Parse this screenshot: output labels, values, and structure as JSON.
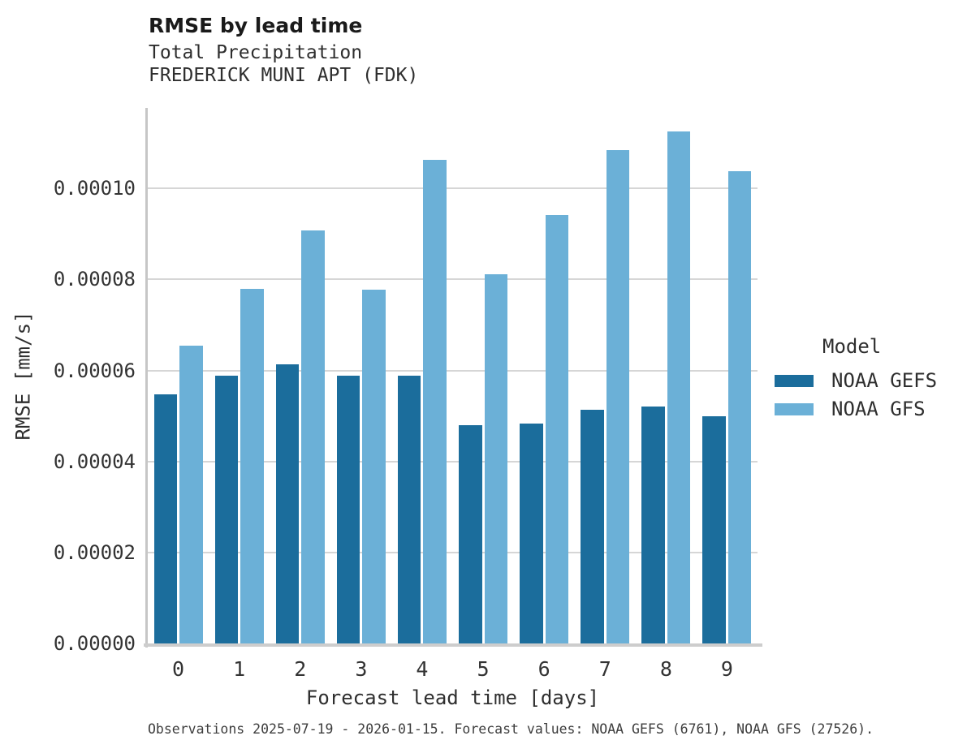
{
  "title": "RMSE by lead time",
  "subtitle_line1": "Total Precipitation",
  "subtitle_line2": "FREDERICK MUNI APT (FDK)",
  "caption": "Observations 2025-07-19 - 2026-01-15. Forecast values: NOAA GEFS (6761), NOAA GFS (27526).",
  "colors": {
    "gefs_bar": "#1b6d9c",
    "gfs_bar": "#6bb0d7",
    "gridline": "#d6d6d6",
    "spine": "#c6c6c6"
  },
  "chart_data": {
    "type": "bar",
    "title": "RMSE by lead time",
    "subtitle": "Total Precipitation — FREDERICK MUNI APT (FDK)",
    "xlabel": "Forecast lead time [days]",
    "ylabel": "RMSE [mm/s]",
    "categories": [
      "0",
      "1",
      "2",
      "3",
      "4",
      "5",
      "6",
      "7",
      "8",
      "9"
    ],
    "series": [
      {
        "name": "NOAA GEFS",
        "color": "#1b6d9c",
        "values": [
          5.47e-05,
          5.89e-05,
          6.14e-05,
          5.88e-05,
          5.89e-05,
          4.8e-05,
          4.84e-05,
          5.13e-05,
          5.2e-05,
          5e-05
        ]
      },
      {
        "name": "NOAA GFS",
        "color": "#6bb0d7",
        "values": [
          6.55e-05,
          7.8e-05,
          9.07e-05,
          7.77e-05,
          0.0001063,
          8.12e-05,
          9.42e-05,
          0.0001084,
          0.0001125,
          0.0001038
        ]
      }
    ],
    "ylim": [
      0,
      0.0001177
    ],
    "yticks": [
      0,
      2e-05,
      4e-05,
      6e-05,
      8e-05,
      0.0001
    ],
    "ytick_labels": [
      "0.00000",
      "0.00002",
      "0.00004",
      "0.00006",
      "0.00008",
      "0.00010"
    ],
    "grid": "horizontal-major",
    "legend_position": "right",
    "legend_title": "Model"
  }
}
